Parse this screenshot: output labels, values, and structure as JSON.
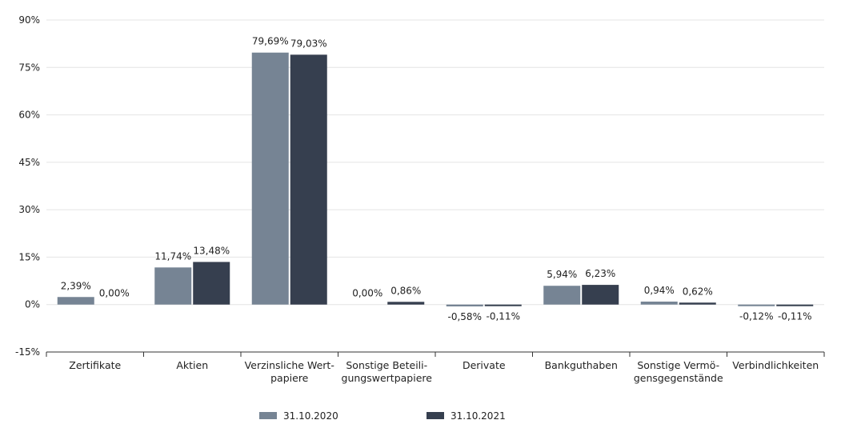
{
  "chart_data": {
    "type": "bar",
    "ylim": [
      -15,
      90
    ],
    "yticks": [
      -15,
      0,
      15,
      30,
      45,
      60,
      75,
      90
    ],
    "ytick_labels": [
      "-15%",
      "0%",
      "15%",
      "30%",
      "45%",
      "60%",
      "75%",
      "90%"
    ],
    "categories": [
      [
        "Zertifikate"
      ],
      [
        "Aktien"
      ],
      [
        "Verzinsliche Wert-",
        "papiere"
      ],
      [
        "Sonstige Beteili-",
        "gungswertpapiere"
      ],
      [
        "Derivate"
      ],
      [
        "Bankguthaben"
      ],
      [
        "Sonstige Vermö-",
        "gensgegenstände"
      ],
      [
        "Verbindlichkeiten"
      ]
    ],
    "series": [
      {
        "name": "31.10.2020",
        "color": "#768494",
        "values": [
          2.39,
          11.74,
          79.69,
          0.0,
          -0.58,
          5.94,
          0.94,
          -0.12
        ],
        "labels": [
          "2,39%",
          "11,74%",
          "79,69%",
          "0,00%",
          "-0,58%",
          "5,94%",
          "0,94%",
          "-0,12%"
        ]
      },
      {
        "name": "31.10.2021",
        "color": "#363f4f",
        "values": [
          0.0,
          13.48,
          79.03,
          0.86,
          -0.11,
          6.23,
          0.62,
          -0.11
        ],
        "labels": [
          "0,00%",
          "13,48%",
          "79,03%",
          "0,86%",
          "-0,11%",
          "6,23%",
          "0,62%",
          "-0,11%"
        ]
      }
    ],
    "legend_position": "bottom"
  }
}
